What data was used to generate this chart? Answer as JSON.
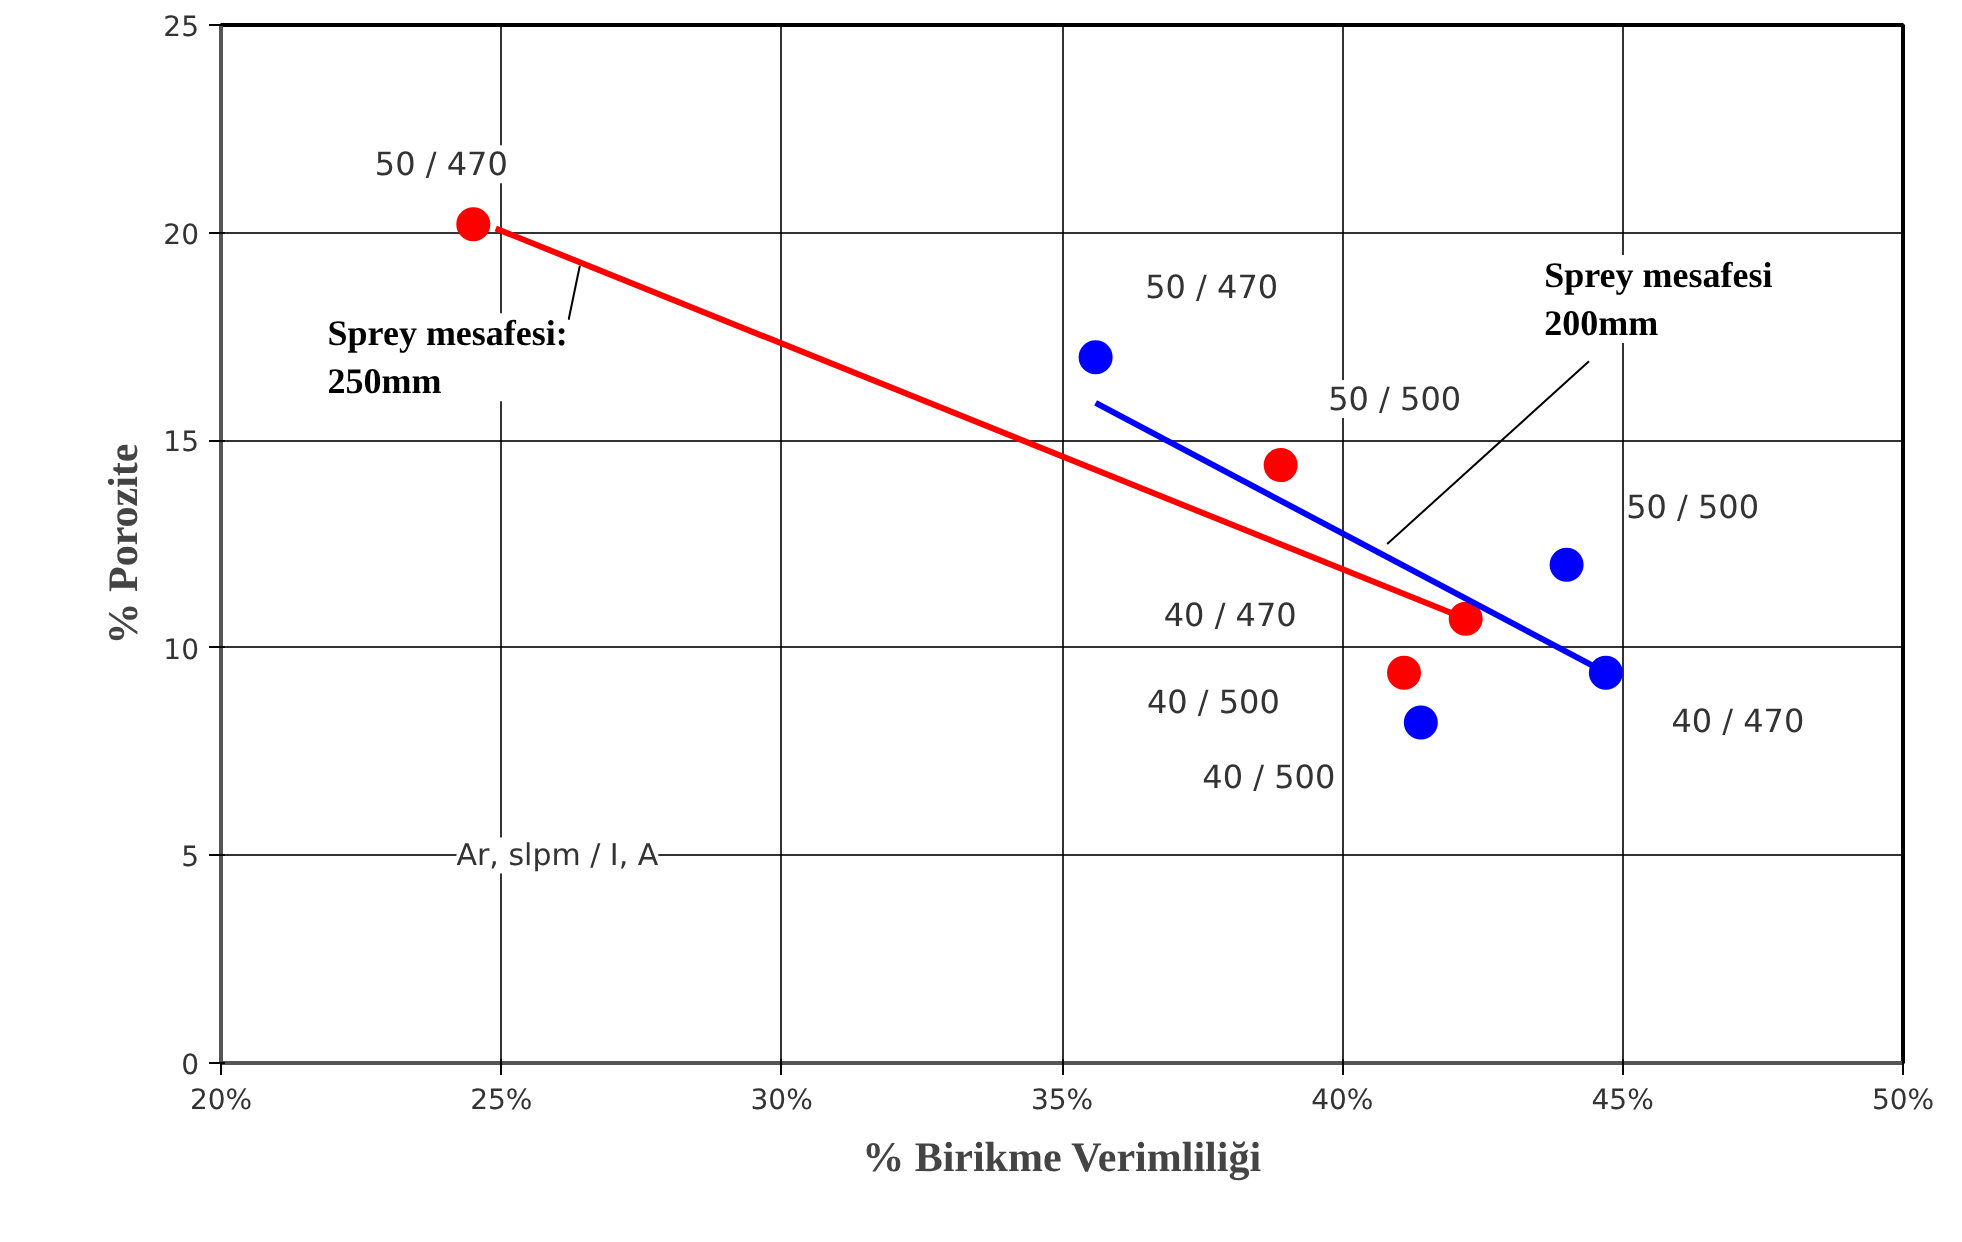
{
  "chart_data": {
    "type": "scatter",
    "xlabel": "% Birikme Verimliliği",
    "ylabel": "% Porozite",
    "xlim": [
      20,
      50
    ],
    "ylim": [
      0,
      25
    ],
    "xticks": [
      {
        "value": 20,
        "label": "20%"
      },
      {
        "value": 25,
        "label": "25%"
      },
      {
        "value": 30,
        "label": "30%"
      },
      {
        "value": 35,
        "label": "35%"
      },
      {
        "value": 40,
        "label": "40%"
      },
      {
        "value": 45,
        "label": "45%"
      },
      {
        "value": 50,
        "label": "50%"
      }
    ],
    "yticks": [
      0,
      5,
      10,
      15,
      20,
      25
    ],
    "grid": true,
    "marker": "circle",
    "series": [
      {
        "color": "#ff0000",
        "x": [
          24.5,
          38.9,
          41.1,
          42.2
        ],
        "values": [
          20.2,
          14.4,
          9.4,
          10.7
        ]
      },
      {
        "color": "#0000ff",
        "x": [
          35.6,
          44.0,
          44.7,
          41.4
        ],
        "values": [
          17.0,
          12.0,
          9.4,
          8.2
        ]
      },
      {
        "type": "line",
        "marker": "none",
        "color": "#ff0000",
        "x": [
          24.9,
          42.2
        ],
        "values": [
          20.1,
          10.7
        ]
      },
      {
        "type": "line",
        "marker": "none",
        "color": "#0000ff",
        "x": [
          35.6,
          44.7
        ],
        "values": [
          15.9,
          9.4
        ]
      }
    ],
    "annotations": [
      {
        "text": "50 / 470",
        "x": 24.5,
        "y": 20.2
      },
      {
        "text": "50 / 470",
        "x": 35.6,
        "y": 17.0
      },
      {
        "text": "50 / 500",
        "x": 38.9,
        "y": 14.4
      },
      {
        "text": "50 / 500",
        "x": 44.0,
        "y": 12.0
      },
      "40 / 470",
      "40 / 500",
      {
        "text": "40 / 500",
        "x": 41.4,
        "y": 8.2
      },
      {
        "text": "40 / 470",
        "x": 44.7,
        "y": 9.4
      },
      "Ar, slpm / I, A",
      "Sprey mesafesi:\n250mm",
      "Sprey mesafesi\n200mm"
    ]
  }
}
